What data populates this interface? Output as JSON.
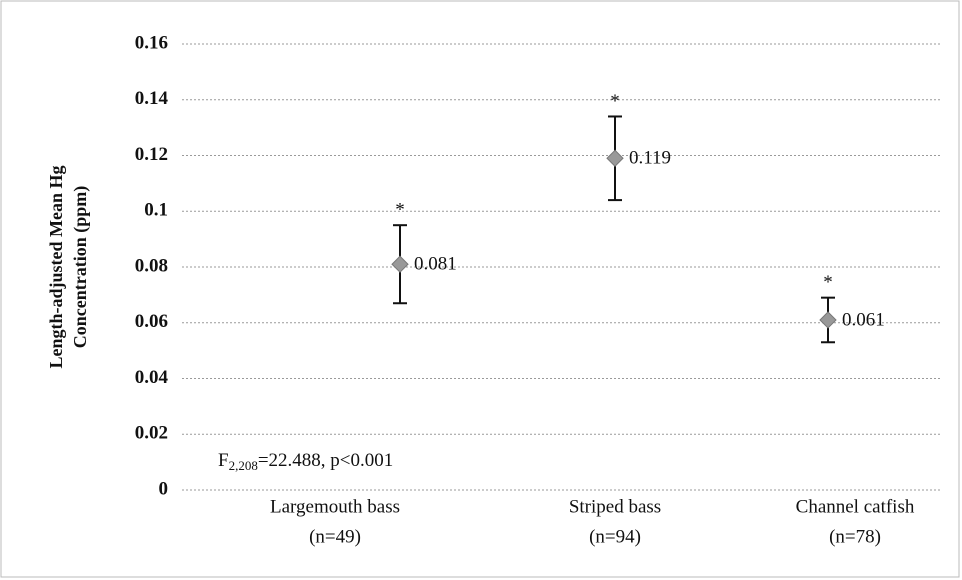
{
  "chart_data": {
    "type": "errorpoint",
    "y_label": [
      "Length-adjusted Mean Hg",
      "Concentration (ppm)"
    ],
    "categories": [
      [
        "Largemouth bass",
        "(n=49)"
      ],
      [
        "Striped bass",
        "(n=94)"
      ],
      [
        "Channel catfish",
        "(n=78)"
      ]
    ],
    "values": [
      0.081,
      0.119,
      0.061
    ],
    "errors": [
      0.014,
      0.015,
      0.008
    ],
    "significance": [
      "*",
      "*",
      "*"
    ],
    "color": "#999999",
    "ylim": [
      0,
      0.16
    ],
    "yticks": [
      0,
      0.02,
      0.04,
      0.06,
      0.08,
      0.1,
      0.12,
      0.14,
      0.16
    ],
    "grid": true,
    "annotation": {
      "main": "F",
      "subscript": "2,208",
      "rest": "=22.488, p<0.001"
    }
  }
}
